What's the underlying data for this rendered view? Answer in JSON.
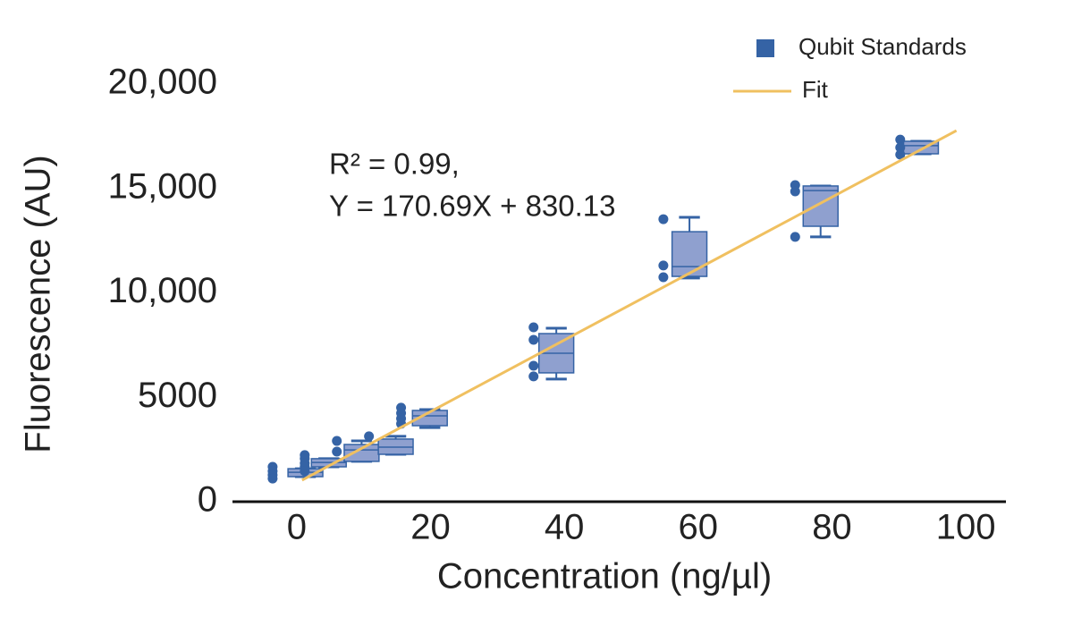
{
  "chart_data": {
    "type": "box",
    "xlabel": "Concentration (ng/µl)",
    "ylabel": "Fluorescence (AU)",
    "annotations": [
      "R² = 0.99,",
      "Y = 170.69X + 830.13"
    ],
    "xlim": [
      -10,
      106
    ],
    "ylim": [
      0,
      20000
    ],
    "xticks": [
      0,
      20,
      40,
      60,
      80,
      100
    ],
    "yticks": [
      0,
      5000,
      {
        "value": 10000,
        "label": "10,000"
      },
      {
        "value": 15000,
        "label": "15,000"
      },
      {
        "value": 20000,
        "label": "20,000"
      }
    ],
    "grid": false,
    "legend": "upper right",
    "series": [
      {
        "name": "Qubit Standards",
        "type": "box",
        "color": "#3563a5",
        "fill": "#8fa0cf",
        "boxes": [
          {
            "x": 1.3,
            "whisker_low": 1200,
            "q1": 1200,
            "median": 1410,
            "q3": 1580,
            "whisker_high": 1580,
            "points_x": [
              -3.6,
              -3.6,
              -3.6,
              -3.6
            ],
            "points": [
              1670,
              1460,
              1280,
              1110
            ]
          },
          {
            "x": 4.8,
            "whisker_low": 1670,
            "q1": 1670,
            "median": 1880,
            "q3": 2060,
            "whisker_high": 2060,
            "points_x": [
              1.2,
              1.2,
              1.2,
              1.2,
              1.2
            ],
            "points": [
              2230,
              2060,
              1840,
              1670,
              1460
            ]
          },
          {
            "x": 9.7,
            "whisker_low": 1930,
            "q1": 1930,
            "median": 2480,
            "q3": 2740,
            "whisker_high": 2910,
            "points_x": [
              6.0,
              6.0
            ],
            "points": [
              2910,
              2400
            ]
          },
          {
            "x": 14.8,
            "whisker_low": 2270,
            "q1": 2270,
            "median": 2610,
            "q3": 3000,
            "whisker_high": 3130,
            "points_x": [
              10.8
            ],
            "points": [
              3130
            ]
          },
          {
            "x": 19.9,
            "whisker_low": 3550,
            "q1": 3640,
            "median": 4110,
            "q3": 4370,
            "whisker_high": 4410,
            "points_x": [
              15.6,
              15.6,
              15.6,
              15.6
            ],
            "points": [
              4500,
              4240,
              3980,
              3730
            ]
          },
          {
            "x": 38.8,
            "whisker_low": 5870,
            "q1": 6170,
            "median": 7110,
            "q3": 8050,
            "whisker_high": 8310,
            "points_x": [
              35.4,
              35.4,
              35.4,
              35.4
            ],
            "points": [
              8350,
              7750,
              6510,
              6000
            ]
          },
          {
            "x": 58.7,
            "whisker_low": 10710,
            "q1": 10790,
            "median": 11260,
            "q3": 12930,
            "whisker_high": 13620,
            "points_x": [
              54.8,
              54.8,
              54.8
            ],
            "points": [
              13530,
              11310,
              10750
            ]
          },
          {
            "x": 78.3,
            "whisker_low": 12680,
            "q1": 13190,
            "median": 14900,
            "q3": 15120,
            "whisker_high": 15120,
            "points_x": [
              74.5,
              74.5,
              74.5
            ],
            "points": [
              15160,
              14860,
              12680
            ]
          },
          {
            "x": 93.3,
            "whisker_low": 16660,
            "q1": 16660,
            "median": 17050,
            "q3": 17260,
            "whisker_high": 17260,
            "points_x": [
              90.2,
              90.2,
              90.2
            ],
            "points": [
              17340,
              16960,
              16620
            ]
          }
        ]
      },
      {
        "name": "Fit",
        "type": "line",
        "color": "#f0c060",
        "x": [
          0.8,
          98.6
        ],
        "values": [
          1030,
          17770
        ]
      }
    ]
  }
}
